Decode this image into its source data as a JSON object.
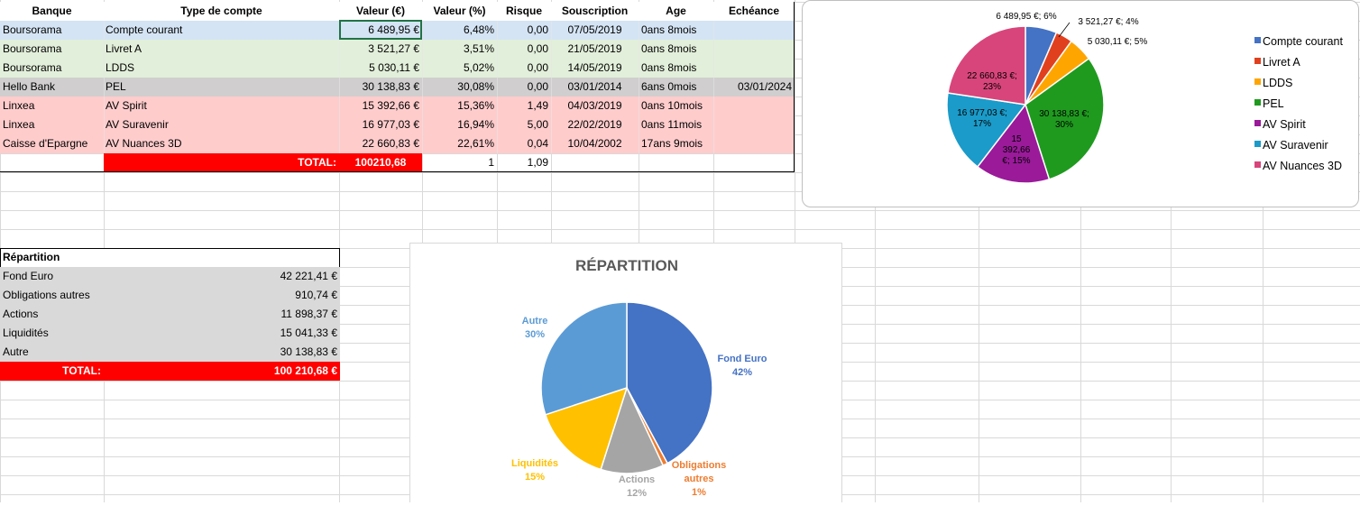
{
  "accounts_table": {
    "headers": [
      "Banque",
      "Type de compte",
      "Valeur (€)",
      "Valeur (%)",
      "Risque",
      "Souscription",
      "Age",
      "Echéance"
    ],
    "rows": [
      {
        "bank": "Boursorama",
        "type": "Compte courant",
        "value": "6 489,95 €",
        "pct": "6,48%",
        "risk": "0,00",
        "date": "07/05/2019",
        "age": "0ans 8mois",
        "due": "",
        "color": "#d4e4f4"
      },
      {
        "bank": "Boursorama",
        "type": "Livret A",
        "value": "3 521,27 €",
        "pct": "3,51%",
        "risk": "0,00",
        "date": "21/05/2019",
        "age": "0ans 8mois",
        "due": "",
        "color": "#e2efda"
      },
      {
        "bank": "Boursorama",
        "type": "LDDS",
        "value": "5 030,11 €",
        "pct": "5,02%",
        "risk": "0,00",
        "date": "14/05/2019",
        "age": "0ans 8mois",
        "due": "",
        "color": "#e2efda"
      },
      {
        "bank": "Hello Bank",
        "type": "PEL",
        "value": "30 138,83 €",
        "pct": "30,08%",
        "risk": "0,00",
        "date": "03/01/2014",
        "age": "6ans 0mois",
        "due": "03/01/2024",
        "color": "#d0cece"
      },
      {
        "bank": "Linxea",
        "type": "AV Spirit",
        "value": "15 392,66 €",
        "pct": "15,36%",
        "risk": "1,49",
        "date": "04/03/2019",
        "age": "0ans 10mois",
        "due": "",
        "color": "#ffcccc"
      },
      {
        "bank": "Linxea",
        "type": "AV Suravenir",
        "value": "16 977,03 €",
        "pct": "16,94%",
        "risk": "5,00",
        "date": "22/02/2019",
        "age": "0ans 11mois",
        "due": "",
        "color": "#ffcccc"
      },
      {
        "bank": "Caisse d'Epargne",
        "type": "AV Nuances 3D",
        "value": "22 660,83 €",
        "pct": "22,61%",
        "risk": "0,04",
        "date": "10/04/2002",
        "age": "17ans 9mois",
        "due": "",
        "color": "#ffcccc"
      }
    ],
    "total": {
      "label": "TOTAL:",
      "value": "100210,68",
      "pct": "1",
      "risk": "1,09"
    }
  },
  "repartition_table": {
    "title": "Répartition",
    "rows": [
      {
        "label": "Fond Euro",
        "value": "42 221,41 €"
      },
      {
        "label": "Obligations autres",
        "value": "910,74 €"
      },
      {
        "label": "Actions",
        "value": "11 898,37 €"
      },
      {
        "label": "Liquidités",
        "value": "15 041,33 €"
      },
      {
        "label": "Autre",
        "value": "30 138,83 €"
      }
    ],
    "total": {
      "label": "TOTAL:",
      "value": "100 210,68 €"
    }
  },
  "chart_data": [
    {
      "type": "pie",
      "title": "",
      "categories": [
        "Compte courant",
        "Livret A",
        "LDDS",
        "PEL",
        "AV Spirit",
        "AV Suravenir",
        "AV Nuances 3D"
      ],
      "values": [
        6489.95,
        3521.27,
        5030.11,
        30138.83,
        15392.66,
        16977.03,
        22660.83
      ],
      "data_labels": [
        "6 489,95 €; 6%",
        "3 521,27 €; 4%",
        "5 030,11 €; 5%",
        "30 138,83 €;\n30%",
        "15\n392,66\n€; 15%",
        "16 977,03 €;\n17%",
        "22 660,83 €;\n23%"
      ],
      "colors": [
        "#4472c4",
        "#e1401e",
        "#ffa500",
        "#1f9a1f",
        "#9a1a9a",
        "#1b9bc9",
        "#d8457a"
      ],
      "legend": "right"
    },
    {
      "type": "pie",
      "title": "RÉPARTITION",
      "categories": [
        "Fond Euro",
        "Obligations autres",
        "Actions",
        "Liquidités",
        "Autre"
      ],
      "values": [
        42221.41,
        910.74,
        11898.37,
        15041.33,
        30138.83
      ],
      "data_labels": [
        "Fond Euro\n42%",
        "Obligations\nautres\n1%",
        "Actions\n12%",
        "Liquidités\n15%",
        "Autre\n30%"
      ],
      "colors": [
        "#4472c4",
        "#ed7d31",
        "#a5a5a5",
        "#ffc000",
        "#5b9bd5"
      ],
      "legend": "none"
    }
  ]
}
